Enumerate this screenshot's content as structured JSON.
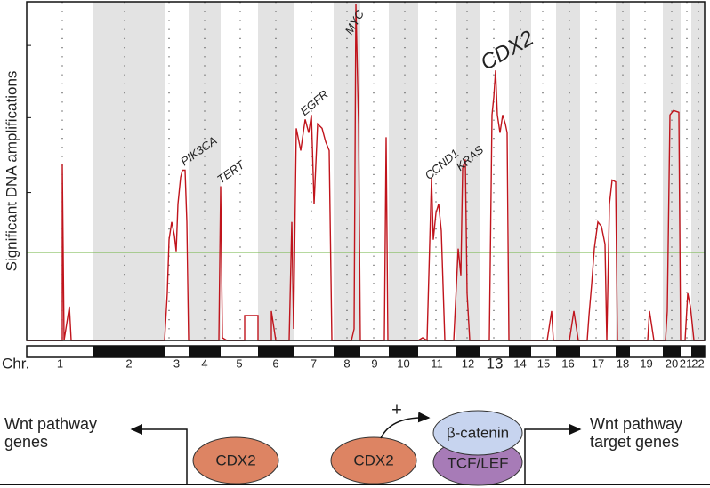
{
  "chart_data": {
    "type": "line",
    "y_label": "Significant DNA amplifications",
    "x_label": "Chr.",
    "categories": [
      "1",
      "2",
      "3",
      "4",
      "5",
      "6",
      "7",
      "8",
      "9",
      "10",
      "11",
      "12",
      "13",
      "14",
      "15",
      "16",
      "17",
      "18",
      "19",
      "20",
      "21",
      "22"
    ],
    "chromosome_edges": [
      0,
      75,
      155,
      182,
      218,
      260,
      300,
      345,
      375,
      407,
      440,
      482,
      510,
      542,
      567,
      595,
      622,
      662,
      678,
      715,
      735,
      747,
      762
    ],
    "xlim": [
      0,
      762
    ],
    "ylim": [
      0,
      380
    ],
    "yticks": [
      166,
      250,
      331
    ],
    "threshold": 99,
    "threshold_color": "#6db33f",
    "color": "#c0141c",
    "x": [
      0,
      40,
      40,
      42,
      48,
      50,
      155,
      158,
      160,
      163,
      166,
      168,
      170,
      173,
      175,
      178,
      180,
      182,
      216,
      218,
      220,
      225,
      245,
      245,
      260,
      260,
      275,
      275,
      280,
      295,
      298,
      300,
      303,
      308,
      313,
      317,
      320,
      323,
      327,
      332,
      336,
      340,
      343,
      365,
      368,
      370,
      373,
      375,
      402,
      404,
      406,
      440,
      445,
      450,
      455,
      457,
      460,
      463,
      466,
      470,
      480,
      485,
      488,
      490,
      493,
      495,
      498,
      520,
      523,
      525,
      527,
      529,
      532,
      535,
      538,
      540,
      542,
      585,
      590,
      592,
      610,
      615,
      620,
      630,
      632,
      635,
      638,
      642,
      646,
      650,
      652,
      655,
      658,
      662,
      664,
      698,
      700,
      705,
      718,
      720,
      723,
      727,
      733,
      735,
      740,
      743,
      746,
      750,
      762
    ],
    "values": [
      0,
      0,
      198,
      0,
      38,
      0,
      0,
      53,
      113,
      133,
      118,
      100,
      153,
      183,
      191,
      191,
      133,
      0,
      0,
      173,
      3,
      0,
      0,
      28,
      28,
      0,
      0,
      33,
      0,
      0,
      133,
      13,
      238,
      213,
      248,
      233,
      253,
      153,
      243,
      238,
      223,
      213,
      0,
      0,
      13,
      378,
      243,
      0,
      0,
      228,
      0,
      0,
      3,
      0,
      183,
      113,
      143,
      153,
      123,
      0,
      0,
      103,
      73,
      193,
      203,
      53,
      0,
      0,
      253,
      273,
      303,
      253,
      233,
      253,
      243,
      233,
      0,
      0,
      33,
      0,
      0,
      33,
      0,
      0,
      28,
      63,
      103,
      133,
      128,
      108,
      0,
      153,
      180,
      178,
      0,
      0,
      33,
      0,
      0,
      33,
      253,
      258,
      256,
      0,
      0,
      53,
      38,
      0,
      0
    ],
    "annotations": [
      "PIK3CA",
      "TERT",
      "EGFR",
      "MYC",
      "CCND1",
      "KRAS",
      "CDX2"
    ]
  },
  "diagram": {
    "left_label": [
      "Wnt pathway",
      "genes"
    ],
    "right_label": [
      "Wnt pathway",
      "target genes"
    ],
    "factor_1": "CDX2",
    "factor_2": "CDX2",
    "plus": "+",
    "partner_top": "β-catenin",
    "partner_bottom": "TCF/LEF"
  }
}
